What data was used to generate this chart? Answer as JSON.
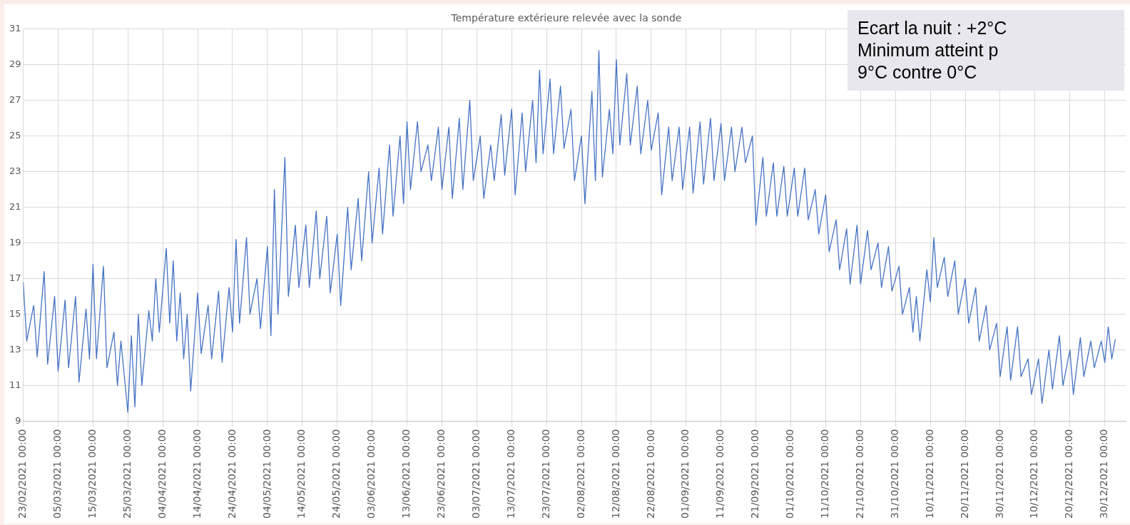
{
  "chart_data": {
    "type": "line",
    "title": "Température extérieure relevée avec la sonde",
    "annotations": [
      "Ecart la nuit : +2°C",
      "Minimum atteint p",
      "9°C contre 0°C"
    ],
    "x": [
      "2021-02-23",
      "2021-02-24",
      "2021-02-26",
      "2021-02-27",
      "2021-03-01",
      "2021-03-02",
      "2021-03-04",
      "2021-03-05",
      "2021-03-07",
      "2021-03-08",
      "2021-03-10",
      "2021-03-11",
      "2021-03-13",
      "2021-03-14",
      "2021-03-15",
      "2021-03-16",
      "2021-03-18",
      "2021-03-19",
      "2021-03-21",
      "2021-03-22",
      "2021-03-23",
      "2021-03-25",
      "2021-03-26",
      "2021-03-27",
      "2021-03-28",
      "2021-03-29",
      "2021-03-31",
      "2021-04-01",
      "2021-04-02",
      "2021-04-03",
      "2021-04-05",
      "2021-04-06",
      "2021-04-07",
      "2021-04-08",
      "2021-04-09",
      "2021-04-10",
      "2021-04-11",
      "2021-04-12",
      "2021-04-14",
      "2021-04-15",
      "2021-04-17",
      "2021-04-18",
      "2021-04-20",
      "2021-04-21",
      "2021-04-23",
      "2021-04-24",
      "2021-04-25",
      "2021-04-26",
      "2021-04-28",
      "2021-04-29",
      "2021-05-01",
      "2021-05-02",
      "2021-05-04",
      "2021-05-05",
      "2021-05-06",
      "2021-05-07",
      "2021-05-09",
      "2021-05-10",
      "2021-05-12",
      "2021-05-13",
      "2021-05-15",
      "2021-05-16",
      "2021-05-18",
      "2021-05-19",
      "2021-05-21",
      "2021-05-22",
      "2021-05-24",
      "2021-05-25",
      "2021-05-27",
      "2021-05-28",
      "2021-05-30",
      "2021-05-31",
      "2021-06-02",
      "2021-06-03",
      "2021-06-05",
      "2021-06-06",
      "2021-06-08",
      "2021-06-09",
      "2021-06-11",
      "2021-06-12",
      "2021-06-13",
      "2021-06-14",
      "2021-06-16",
      "2021-06-17",
      "2021-06-19",
      "2021-06-20",
      "2021-06-22",
      "2021-06-23",
      "2021-06-25",
      "2021-06-26",
      "2021-06-28",
      "2021-06-29",
      "2021-07-01",
      "2021-07-02",
      "2021-07-04",
      "2021-07-05",
      "2021-07-07",
      "2021-07-08",
      "2021-07-10",
      "2021-07-11",
      "2021-07-13",
      "2021-07-14",
      "2021-07-16",
      "2021-07-17",
      "2021-07-19",
      "2021-07-20",
      "2021-07-21",
      "2021-07-22",
      "2021-07-24",
      "2021-07-25",
      "2021-07-27",
      "2021-07-28",
      "2021-07-30",
      "2021-07-31",
      "2021-08-02",
      "2021-08-03",
      "2021-08-05",
      "2021-08-06",
      "2021-08-07",
      "2021-08-08",
      "2021-08-10",
      "2021-08-11",
      "2021-08-12",
      "2021-08-13",
      "2021-08-15",
      "2021-08-16",
      "2021-08-18",
      "2021-08-19",
      "2021-08-21",
      "2021-08-22",
      "2021-08-24",
      "2021-08-25",
      "2021-08-27",
      "2021-08-28",
      "2021-08-30",
      "2021-08-31",
      "2021-09-02",
      "2021-09-03",
      "2021-09-05",
      "2021-09-06",
      "2021-09-08",
      "2021-09-09",
      "2021-09-11",
      "2021-09-12",
      "2021-09-14",
      "2021-09-15",
      "2021-09-17",
      "2021-09-18",
      "2021-09-20",
      "2021-09-21",
      "2021-09-23",
      "2021-09-24",
      "2021-09-26",
      "2021-09-27",
      "2021-09-29",
      "2021-09-30",
      "2021-10-02",
      "2021-10-03",
      "2021-10-05",
      "2021-10-06",
      "2021-10-08",
      "2021-10-09",
      "2021-10-11",
      "2021-10-12",
      "2021-10-14",
      "2021-10-15",
      "2021-10-17",
      "2021-10-18",
      "2021-10-20",
      "2021-10-21",
      "2021-10-23",
      "2021-10-24",
      "2021-10-26",
      "2021-10-27",
      "2021-10-29",
      "2021-10-30",
      "2021-11-01",
      "2021-11-02",
      "2021-11-04",
      "2021-11-05",
      "2021-11-06",
      "2021-11-07",
      "2021-11-09",
      "2021-11-10",
      "2021-11-11",
      "2021-11-12",
      "2021-11-14",
      "2021-11-15",
      "2021-11-17",
      "2021-11-18",
      "2021-11-20",
      "2021-11-21",
      "2021-11-23",
      "2021-11-24",
      "2021-11-26",
      "2021-11-27",
      "2021-11-29",
      "2021-11-30",
      "2021-12-02",
      "2021-12-03",
      "2021-12-05",
      "2021-12-06",
      "2021-12-08",
      "2021-12-09",
      "2021-12-11",
      "2021-12-12",
      "2021-12-14",
      "2021-12-15",
      "2021-12-17",
      "2021-12-18",
      "2021-12-20",
      "2021-12-21",
      "2021-12-23",
      "2021-12-24",
      "2021-12-26",
      "2021-12-27",
      "2021-12-29",
      "2021-12-30",
      "2021-12-31",
      "2022-01-01",
      "2022-01-02"
    ],
    "series": [
      {
        "color": "#4472c4",
        "values": [
          16.8,
          13.5,
          15.5,
          12.6,
          17.4,
          12.2,
          16,
          11.8,
          15.8,
          12,
          16,
          11.2,
          15.3,
          12.5,
          17.8,
          12.5,
          17.7,
          12,
          14,
          11,
          13.5,
          9.5,
          13.8,
          9.8,
          15,
          11,
          15.2,
          13.5,
          17,
          14,
          18.7,
          14.5,
          18,
          13.5,
          16.2,
          12.5,
          15,
          10.7,
          16.2,
          12.8,
          15.5,
          12.5,
          16.3,
          12.3,
          16.5,
          14,
          19.2,
          14.5,
          19.3,
          15,
          17,
          14.2,
          18.8,
          13.8,
          22,
          15,
          23.8,
          16,
          20,
          16.5,
          20,
          16.5,
          20.8,
          17,
          20.5,
          16.2,
          19.5,
          15.5,
          21,
          17.5,
          21.5,
          18,
          23,
          19,
          23.2,
          19.5,
          24.5,
          20.5,
          25,
          21.2,
          25.8,
          22,
          25.8,
          23,
          24.5,
          22.5,
          25.5,
          22,
          25.5,
          21.5,
          26,
          22,
          27,
          22.5,
          25,
          21.5,
          24.5,
          22.5,
          26.2,
          22.8,
          26.5,
          21.7,
          26.3,
          23,
          27,
          23.5,
          28.7,
          24,
          28.2,
          24,
          27.8,
          24.3,
          26.5,
          22.5,
          25,
          21.2,
          27.5,
          22.5,
          29.8,
          22.7,
          26.5,
          24,
          29.3,
          24.5,
          28.5,
          24.5,
          27.8,
          24,
          27,
          24.2,
          26.3,
          21.7,
          25.5,
          22.5,
          25.5,
          22,
          25.5,
          21.8,
          25.8,
          22.3,
          26,
          22.5,
          25.7,
          22.5,
          25.5,
          23,
          25.5,
          23.5,
          25,
          20,
          23.8,
          20.5,
          23.5,
          20.5,
          23.3,
          20.5,
          23.2,
          20.5,
          23.2,
          20.3,
          22,
          19.5,
          21.7,
          18.5,
          20.3,
          17.5,
          19.8,
          16.7,
          20,
          16.7,
          19.7,
          17.5,
          19,
          16.5,
          18.8,
          16.3,
          17.7,
          15,
          16.5,
          14,
          16,
          13.5,
          17.5,
          15.7,
          19.3,
          16.5,
          18.2,
          16,
          18,
          15,
          17,
          14.5,
          16.5,
          13.5,
          15.5,
          13,
          14.5,
          11.5,
          14.3,
          11.3,
          14.3,
          11.5,
          12.5,
          10.5,
          12.5,
          10,
          13,
          10.8,
          13.8,
          11,
          13,
          10.5,
          13.7,
          11.5,
          13.5,
          12,
          13.5,
          12.3,
          14.3,
          12.5,
          13.6
        ]
      }
    ],
    "xlim": [
      "2021-02-23",
      "2022-01-05"
    ],
    "xticks": [
      {
        "value": "2021-02-23",
        "label": "23/02/2021 00:00"
      },
      {
        "value": "2021-03-05",
        "label": "05/03/2021 00:00"
      },
      {
        "value": "2021-03-15",
        "label": "15/03/2021 00:00"
      },
      {
        "value": "2021-03-25",
        "label": "25/03/2021 00:00"
      },
      {
        "value": "2021-04-04",
        "label": "04/04/2021 00:00"
      },
      {
        "value": "2021-04-14",
        "label": "14/04/2021 00:00"
      },
      {
        "value": "2021-04-24",
        "label": "24/04/2021 00:00"
      },
      {
        "value": "2021-05-04",
        "label": "04/05/2021 00:00"
      },
      {
        "value": "2021-05-14",
        "label": "14/05/2021 00:00"
      },
      {
        "value": "2021-05-24",
        "label": "24/05/2021 00:00"
      },
      {
        "value": "2021-06-03",
        "label": "03/06/2021 00:00"
      },
      {
        "value": "2021-06-13",
        "label": "13/06/2021 00:00"
      },
      {
        "value": "2021-06-23",
        "label": "23/06/2021 00:00"
      },
      {
        "value": "2021-07-03",
        "label": "03/07/2021 00:00"
      },
      {
        "value": "2021-07-13",
        "label": "13/07/2021 00:00"
      },
      {
        "value": "2021-07-23",
        "label": "23/07/2021 00:00"
      },
      {
        "value": "2021-08-02",
        "label": "02/08/2021 00:00"
      },
      {
        "value": "2021-08-12",
        "label": "12/08/2021 00:00"
      },
      {
        "value": "2021-08-22",
        "label": "22/08/2021 00:00"
      },
      {
        "value": "2021-09-01",
        "label": "01/09/2021 00:00"
      },
      {
        "value": "2021-09-11",
        "label": "11/09/2021 00:00"
      },
      {
        "value": "2021-09-21",
        "label": "21/09/2021 00:00"
      },
      {
        "value": "2021-10-01",
        "label": "01/10/2021 00:00"
      },
      {
        "value": "2021-10-11",
        "label": "11/10/2021 00:00"
      },
      {
        "value": "2021-10-21",
        "label": "21/10/2021 00:00"
      },
      {
        "value": "2021-10-31",
        "label": "31/10/2021 00:00"
      },
      {
        "value": "2021-11-10",
        "label": "10/11/2021 00:00"
      },
      {
        "value": "2021-11-20",
        "label": "20/11/2021 00:00"
      },
      {
        "value": "2021-11-30",
        "label": "30/11/2021 00:00"
      },
      {
        "value": "2021-12-10",
        "label": "10/12/2021 00:00"
      },
      {
        "value": "2021-12-20",
        "label": "20/12/2021 00:00"
      },
      {
        "value": "2021-12-30",
        "label": "30/12/2021 00:00"
      }
    ],
    "ylim": [
      9,
      31
    ],
    "yticks": [
      9,
      11,
      13,
      15,
      17,
      19,
      21,
      23,
      25,
      27,
      29,
      31
    ],
    "grid": true,
    "legend": false,
    "marker": "none",
    "line_style": "solid"
  }
}
